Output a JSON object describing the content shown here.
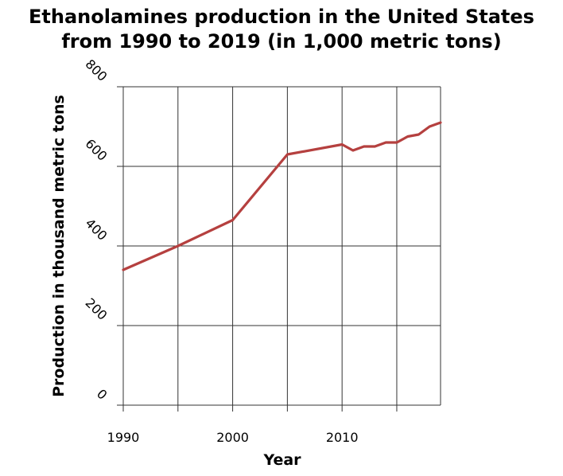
{
  "chart_data": {
    "type": "line",
    "title_line1": "Ethanolamines production in the United States",
    "title_line2": "from 1990 to 2019 (in 1,000 metric tons)",
    "xlabel": "Year",
    "ylabel": "Production in thousand metric tons",
    "xlim": [
      1990,
      2019
    ],
    "ylim": [
      0,
      800
    ],
    "x_ticks": [
      1990,
      1995,
      2000,
      2005,
      2010,
      2015
    ],
    "x_tick_labels": [
      "1990",
      "",
      "2000",
      "",
      "2010",
      ""
    ],
    "y_ticks": [
      0,
      200,
      400,
      600,
      800
    ],
    "y_tick_labels": [
      "0",
      "200",
      "400",
      "600",
      "800"
    ],
    "grid": true,
    "line_color": "#b5403f",
    "series": [
      {
        "x": [
          1990,
          1995,
          2000,
          2005,
          2010,
          2011,
          2012,
          2013,
          2014,
          2015,
          2016,
          2017,
          2018,
          2019
        ],
        "y": [
          340,
          400,
          465,
          630,
          655,
          640,
          650,
          650,
          660,
          660,
          675,
          680,
          700,
          710
        ]
      }
    ]
  }
}
